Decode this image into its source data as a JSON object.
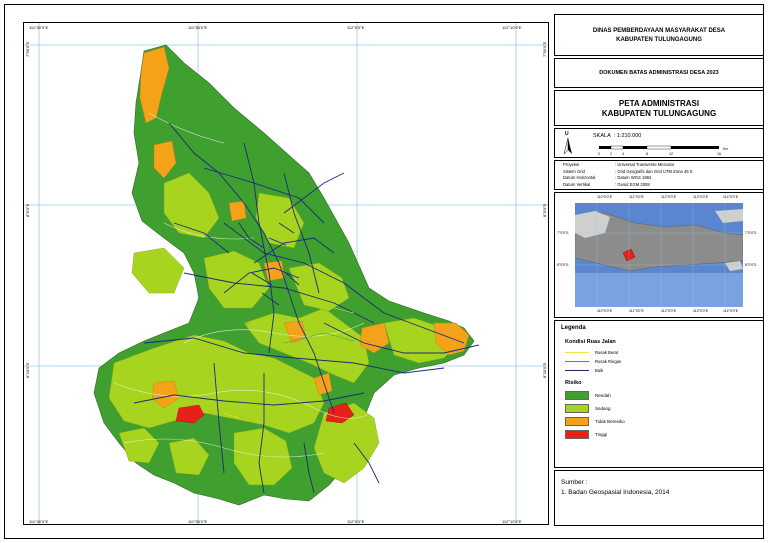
{
  "header": {
    "agency_line1": "DINAS PEMBERDAYAAN MASYARAKAT DESA",
    "agency_line2": "KABUPATEN TULUNGAGUNG",
    "document_title": "DOKUMEN BATAS ADMINISTRASI DESA 2023",
    "map_title_line1": "PETA ADMINISTRASI",
    "map_title_line2": "KABUPATEN TULUNGAGUNG"
  },
  "scale": {
    "north_label": "U",
    "label": "SKALA",
    "value": ": 1:210.000",
    "ticks": [
      "0",
      "2",
      "4",
      "8",
      "12",
      "16"
    ],
    "unit": "Km"
  },
  "metadata": [
    {
      "key": "Proyeksi",
      "value": ": Universal Transverse Mercator"
    },
    {
      "key": "Sistem Grid",
      "value": ": Grid Geografis dan Grid UTM Zona 49 S"
    },
    {
      "key": "Datum Horizontal",
      "value": ": Datum WGS 1984"
    },
    {
      "key": "Datum Vertikal",
      "value": ": Geoid EGM 2008"
    }
  ],
  "map_ticks": {
    "top": [
      "111°40'0\"E",
      "111°50'0\"E",
      "112°0'0\"E",
      "112°10'0\"E"
    ],
    "bottom": [
      "111°40'0\"E",
      "111°50'0\"E",
      "112°0'0\"E",
      "112°10'0\"E"
    ],
    "left": [
      "7°50'0\"S",
      "8°0'0\"S",
      "8°10'0\"S"
    ],
    "right": [
      "7°50'0\"S",
      "8°0'0\"S",
      "8°10'0\"S"
    ]
  },
  "inset_ticks": {
    "top": [
      "110°0'0\"E",
      "111°0'0\"E",
      "112°0'0\"E",
      "113°0'0\"E",
      "114°0'0\"E"
    ],
    "bottom": [
      "110°0'0\"E",
      "111°0'0\"E",
      "112°0'0\"E",
      "113°0'0\"E",
      "114°0'0\"E"
    ],
    "left": [
      "7°0'0\"S",
      "8°0'0\"S"
    ],
    "right": [
      "7°0'0\"S",
      "8°0'0\"S"
    ]
  },
  "legend": {
    "title": "Legenda",
    "road_heading": "Kondisi Ruas Jalan",
    "roads": [
      {
        "label": "Rusak Berat",
        "color": "#f2e24a"
      },
      {
        "label": "Rusak Ringan",
        "color": "#3aa04a"
      },
      {
        "label": "Baik",
        "color": "#1b2a7a"
      }
    ],
    "risk_heading": "Risiko",
    "risks": [
      {
        "label": "Rendah",
        "color": "#3f9f2f"
      },
      {
        "label": "Sedang",
        "color": "#a7d41f"
      },
      {
        "label": "Tidak Beresiko",
        "color": "#f5a21b"
      },
      {
        "label": "Tinggi",
        "color": "#e8201a"
      }
    ]
  },
  "source": {
    "label": "Sumber :",
    "items": [
      "1. Badan Geospasial Indonesia, 2014"
    ]
  }
}
